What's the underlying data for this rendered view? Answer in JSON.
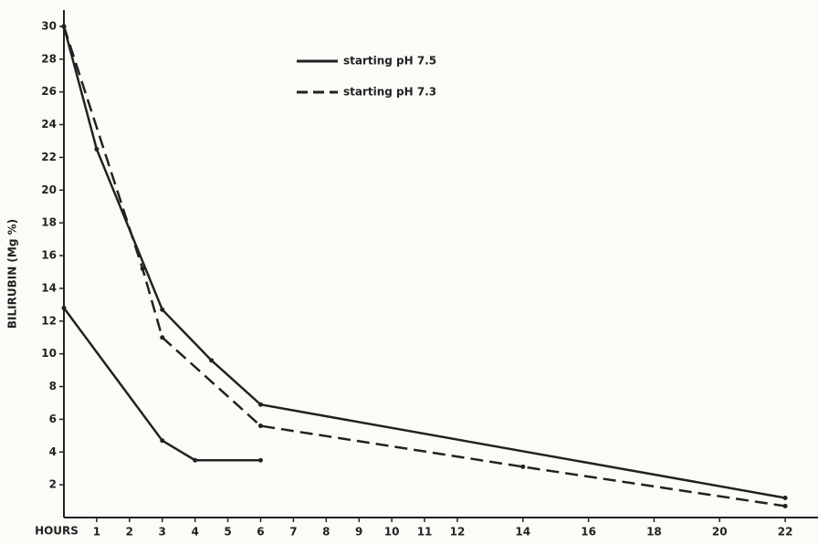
{
  "chart_data": {
    "type": "line",
    "ylabel": "BILIRUBIN (Mg %)",
    "xlabel": "HOURS",
    "xlim": [
      0,
      23
    ],
    "ylim": [
      0,
      31
    ],
    "xticks": [
      1,
      2,
      3,
      4,
      5,
      6,
      7,
      8,
      9,
      10,
      11,
      12,
      14,
      16,
      18,
      20,
      22
    ],
    "yticks": [
      2,
      4,
      6,
      8,
      10,
      12,
      14,
      16,
      18,
      20,
      22,
      24,
      26,
      28,
      30
    ],
    "series": [
      {
        "name": "starting pH 7.5",
        "color": "#222222",
        "dashed": false,
        "x": [
          0,
          1,
          3,
          4.5,
          6,
          22
        ],
        "values": [
          30,
          22.5,
          12.7,
          9.6,
          6.9,
          1.2
        ]
      },
      {
        "name": "starting pH 7.3",
        "color": "#222222",
        "dashed": true,
        "x": [
          0,
          2.4,
          3,
          6,
          14,
          22
        ],
        "values": [
          30,
          15.2,
          11,
          5.6,
          3.1,
          0.7
        ]
      },
      {
        "color": "#222222",
        "dashed": false,
        "x": [
          0,
          3,
          4,
          6
        ],
        "values": [
          12.8,
          4.7,
          3.5,
          3.5
        ]
      }
    ]
  }
}
